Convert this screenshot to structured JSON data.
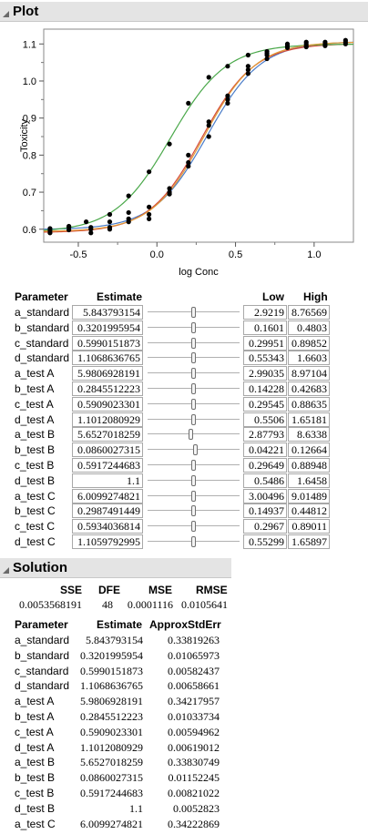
{
  "plot": {
    "title": "Plot",
    "xlabel": "log Conc",
    "ylabel": "Toxicity"
  },
  "chart_data": {
    "type": "scatter",
    "title": "",
    "xlabel": "log Conc",
    "ylabel": "Toxicity",
    "xlim": [
      -0.72,
      1.25
    ],
    "ylim": [
      0.565,
      1.14
    ],
    "xticks": [
      -0.5,
      0.0,
      0.5,
      1.0
    ],
    "xtick_labels": [
      "-0.5",
      "0.0",
      "0.5",
      "1.0"
    ],
    "yticks": [
      0.6,
      0.7,
      0.8,
      0.9,
      1.0,
      1.1
    ],
    "ytick_labels": [
      "0.6",
      "0.7",
      "0.8",
      "0.9",
      "1.0",
      "1.1"
    ],
    "grid": false,
    "points": [
      {
        "x": -0.68,
        "y": 0.596
      },
      {
        "x": -0.68,
        "y": 0.602
      },
      {
        "x": -0.68,
        "y": 0.59
      },
      {
        "x": -0.56,
        "y": 0.598
      },
      {
        "x": -0.56,
        "y": 0.605
      },
      {
        "x": -0.56,
        "y": 0.608
      },
      {
        "x": -0.45,
        "y": 0.62
      },
      {
        "x": -0.42,
        "y": 0.605
      },
      {
        "x": -0.42,
        "y": 0.59
      },
      {
        "x": -0.42,
        "y": 0.6
      },
      {
        "x": -0.3,
        "y": 0.62
      },
      {
        "x": -0.3,
        "y": 0.64
      },
      {
        "x": -0.3,
        "y": 0.605
      },
      {
        "x": -0.3,
        "y": 0.6
      },
      {
        "x": -0.18,
        "y": 0.645
      },
      {
        "x": -0.18,
        "y": 0.69
      },
      {
        "x": -0.18,
        "y": 0.628
      },
      {
        "x": -0.18,
        "y": 0.62
      },
      {
        "x": -0.05,
        "y": 0.66
      },
      {
        "x": -0.05,
        "y": 0.755
      },
      {
        "x": -0.05,
        "y": 0.628
      },
      {
        "x": -0.05,
        "y": 0.64
      },
      {
        "x": 0.08,
        "y": 0.71
      },
      {
        "x": 0.08,
        "y": 0.83
      },
      {
        "x": 0.08,
        "y": 0.7
      },
      {
        "x": 0.08,
        "y": 0.695
      },
      {
        "x": 0.2,
        "y": 0.8
      },
      {
        "x": 0.2,
        "y": 0.94
      },
      {
        "x": 0.2,
        "y": 0.77
      },
      {
        "x": 0.2,
        "y": 0.78
      },
      {
        "x": 0.33,
        "y": 0.88
      },
      {
        "x": 0.33,
        "y": 1.01
      },
      {
        "x": 0.33,
        "y": 0.85
      },
      {
        "x": 0.33,
        "y": 0.89
      },
      {
        "x": 0.45,
        "y": 0.96
      },
      {
        "x": 0.45,
        "y": 1.04
      },
      {
        "x": 0.45,
        "y": 0.95
      },
      {
        "x": 0.45,
        "y": 0.94
      },
      {
        "x": 0.58,
        "y": 1.02
      },
      {
        "x": 0.58,
        "y": 1.07
      },
      {
        "x": 0.58,
        "y": 1.04
      },
      {
        "x": 0.58,
        "y": 1.03
      },
      {
        "x": 0.7,
        "y": 1.06
      },
      {
        "x": 0.7,
        "y": 1.075
      },
      {
        "x": 0.7,
        "y": 1.08
      },
      {
        "x": 0.7,
        "y": 1.07
      },
      {
        "x": 0.83,
        "y": 1.095
      },
      {
        "x": 0.83,
        "y": 1.1
      },
      {
        "x": 0.83,
        "y": 1.09
      },
      {
        "x": 0.95,
        "y": 1.1
      },
      {
        "x": 0.95,
        "y": 1.095
      },
      {
        "x": 0.95,
        "y": 1.105
      },
      {
        "x": 0.95,
        "y": 1.092
      },
      {
        "x": 1.07,
        "y": 1.1
      },
      {
        "x": 1.07,
        "y": 1.105
      },
      {
        "x": 1.07,
        "y": 1.095
      },
      {
        "x": 1.2,
        "y": 1.11
      },
      {
        "x": 1.2,
        "y": 1.1
      },
      {
        "x": 1.2,
        "y": 1.105
      }
    ],
    "curves": [
      {
        "color": "#4a7cc8",
        "a": 5.843793154,
        "b": 0.3201995954,
        "c": 0.5990151873,
        "d": 1.1068636765
      },
      {
        "color": "#d44a3a",
        "a": 5.9806928191,
        "b": 0.2845512223,
        "c": 0.5909023301,
        "d": 1.1012080929
      },
      {
        "color": "#4aa84a",
        "a": 5.6527018259,
        "b": 0.0860027315,
        "c": 0.5917244683,
        "d": 1.1
      },
      {
        "color": "#e09a38",
        "a": 6.0099274821,
        "b": 0.2987491449,
        "c": 0.5934036814,
        "d": 1.1059792995
      }
    ]
  },
  "param_table": {
    "headers": {
      "parameter": "Parameter",
      "estimate": "Estimate",
      "low": "Low",
      "high": "High"
    },
    "rows": [
      {
        "name": "a_standard",
        "estimate": "5.843793154",
        "low": "2.9219",
        "high": "8.76569",
        "slider": 0.5
      },
      {
        "name": "b_standard",
        "estimate": "0.3201995954",
        "low": "0.1601",
        "high": "0.4803",
        "slider": 0.5
      },
      {
        "name": "c_standard",
        "estimate": "0.5990151873",
        "low": "0.29951",
        "high": "0.89852",
        "slider": 0.5
      },
      {
        "name": "d_standard",
        "estimate": "1.1068636765",
        "low": "0.55343",
        "high": "1.6603",
        "slider": 0.5
      },
      {
        "name": "a_test A",
        "estimate": "5.9806928191",
        "low": "2.99035",
        "high": "8.97104",
        "slider": 0.5
      },
      {
        "name": "b_test A",
        "estimate": "0.2845512223",
        "low": "0.14228",
        "high": "0.42683",
        "slider": 0.5
      },
      {
        "name": "c_test A",
        "estimate": "0.5909023301",
        "low": "0.29545",
        "high": "0.88635",
        "slider": 0.5
      },
      {
        "name": "d_test A",
        "estimate": "1.1012080929",
        "low": "0.5506",
        "high": "1.65181",
        "slider": 0.5
      },
      {
        "name": "a_test B",
        "estimate": "5.6527018259",
        "low": "2.87793",
        "high": "8.6338",
        "slider": 0.47
      },
      {
        "name": "b_test B",
        "estimate": "0.0860027315",
        "low": "0.04221",
        "high": "0.12664",
        "slider": 0.52
      },
      {
        "name": "c_test B",
        "estimate": "0.5917244683",
        "low": "0.29649",
        "high": "0.88948",
        "slider": 0.5
      },
      {
        "name": "d_test B",
        "estimate": "1.1",
        "low": "0.5486",
        "high": "1.6458",
        "slider": 0.5
      },
      {
        "name": "a_test C",
        "estimate": "6.0099274821",
        "low": "3.00496",
        "high": "9.01489",
        "slider": 0.5
      },
      {
        "name": "b_test C",
        "estimate": "0.2987491449",
        "low": "0.14937",
        "high": "0.44812",
        "slider": 0.5
      },
      {
        "name": "c_test C",
        "estimate": "0.5934036814",
        "low": "0.2967",
        "high": "0.89011",
        "slider": 0.5
      },
      {
        "name": "d_test C",
        "estimate": "1.1059792995",
        "low": "0.55299",
        "high": "1.65897",
        "slider": 0.5
      }
    ]
  },
  "solution": {
    "title": "Solution",
    "stats_headers": {
      "sse": "SSE",
      "dfe": "DFE",
      "mse": "MSE",
      "rmse": "RMSE"
    },
    "stats_values": {
      "sse": "0.0053568191",
      "dfe": "48",
      "mse": "0.0001116",
      "rmse": "0.0105641"
    },
    "headers": {
      "parameter": "Parameter",
      "estimate": "Estimate",
      "stderr": "ApproxStdErr"
    },
    "rows": [
      {
        "name": "a_standard",
        "estimate": "5.843793154",
        "stderr": "0.33819263"
      },
      {
        "name": "b_standard",
        "estimate": "0.3201995954",
        "stderr": "0.01065973"
      },
      {
        "name": "c_standard",
        "estimate": "0.5990151873",
        "stderr": "0.00582437"
      },
      {
        "name": "d_standard",
        "estimate": "1.1068636765",
        "stderr": "0.00658661"
      },
      {
        "name": "a_test A",
        "estimate": "5.9806928191",
        "stderr": "0.34217957"
      },
      {
        "name": "b_test A",
        "estimate": "0.2845512223",
        "stderr": "0.01033734"
      },
      {
        "name": "c_test A",
        "estimate": "0.5909023301",
        "stderr": "0.00594962"
      },
      {
        "name": "d_test A",
        "estimate": "1.1012080929",
        "stderr": "0.00619012"
      },
      {
        "name": "a_test B",
        "estimate": "5.6527018259",
        "stderr": "0.33830749"
      },
      {
        "name": "b_test B",
        "estimate": "0.0860027315",
        "stderr": "0.01152245"
      },
      {
        "name": "c_test B",
        "estimate": "0.5917244683",
        "stderr": "0.00821022"
      },
      {
        "name": "d_test B",
        "estimate": "1.1",
        "stderr": "0.0052823"
      },
      {
        "name": "a_test C",
        "estimate": "6.0099274821",
        "stderr": "0.34222869"
      }
    ]
  }
}
